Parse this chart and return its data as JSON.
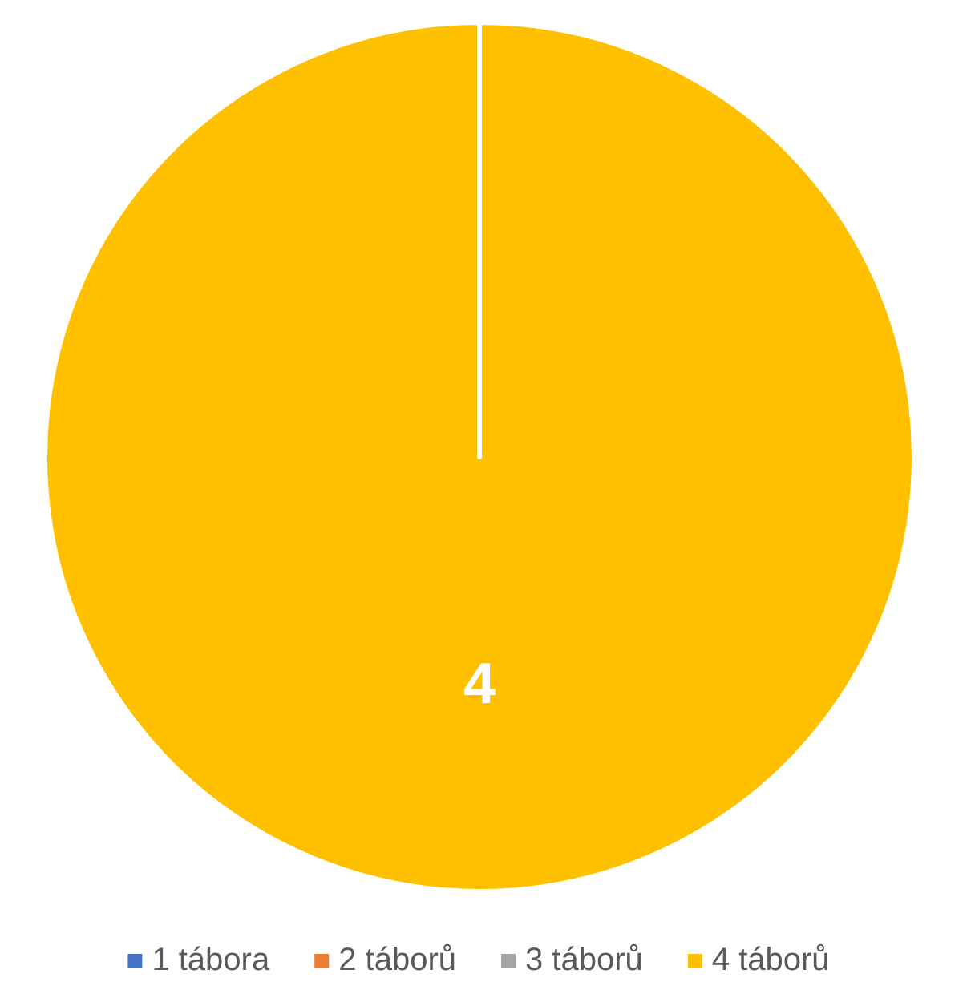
{
  "chart_data": {
    "type": "pie",
    "categories": [
      "1 tábora",
      "2 táborů",
      "3 táborů",
      "4 táborů"
    ],
    "values": [
      0,
      0,
      0,
      4
    ],
    "colors": [
      "#4472c4",
      "#ed7d31",
      "#a5a5a5",
      "#ffc000"
    ],
    "value_labels": [
      null,
      null,
      null,
      "4"
    ],
    "legend": "bottom"
  }
}
